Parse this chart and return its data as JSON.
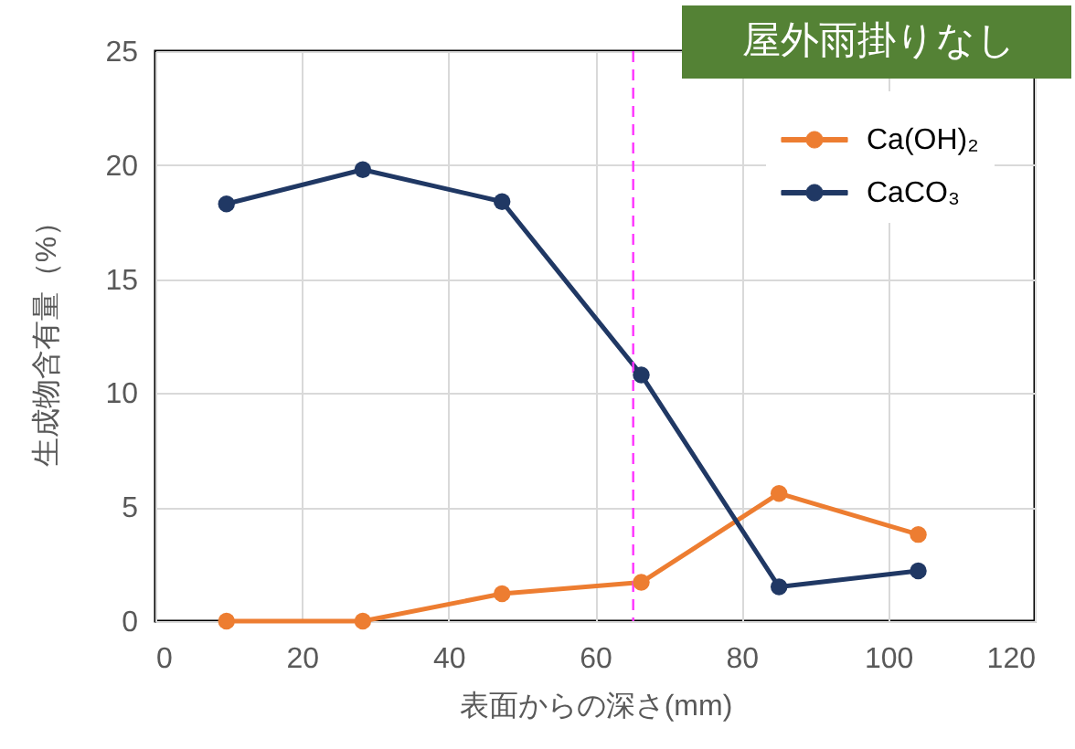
{
  "chart_data": {
    "type": "line",
    "title": "屋外雨掛りなし",
    "xlabel": "表面からの深さ(mm)",
    "ylabel": "生成物含有量（%）",
    "x": [
      9.7,
      28.3,
      47.3,
      66.3,
      85.1,
      104.1
    ],
    "series": [
      {
        "name": "Ca(OH)₂",
        "color": "#ed7d31",
        "values": [
          0,
          0,
          1.2,
          1.7,
          5.6,
          3.8
        ]
      },
      {
        "name": "CaCO₃",
        "color": "#203864",
        "values": [
          18.3,
          19.8,
          18.4,
          10.8,
          1.5,
          2.2
        ]
      }
    ],
    "xlim": [
      0,
      120
    ],
    "ylim": [
      0,
      25
    ],
    "xticks": [
      0,
      20,
      40,
      60,
      80,
      100,
      120
    ],
    "yticks": [
      0,
      5,
      10,
      15,
      20,
      25
    ],
    "grid": true,
    "legend": "top right",
    "marker": "circle",
    "line_style": "solid",
    "ref_lines": [
      {
        "axis": "x",
        "value": 65.2,
        "color": "#ff33ff",
        "line_style": "dashed"
      }
    ]
  }
}
